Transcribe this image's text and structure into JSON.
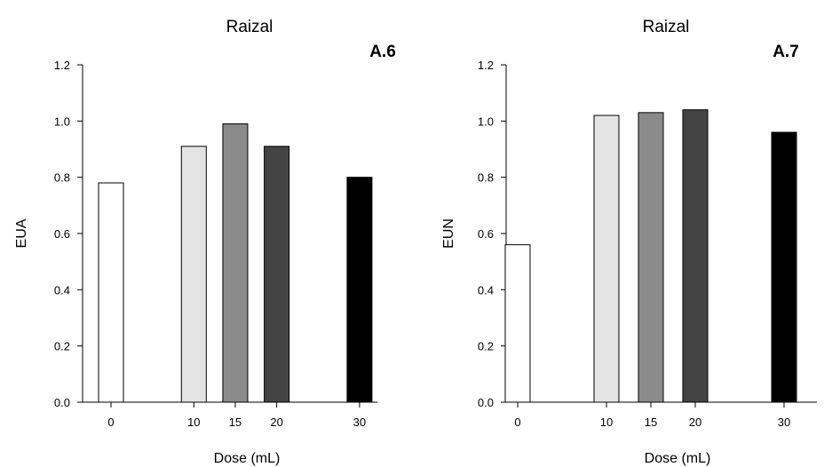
{
  "chart_data": [
    {
      "type": "bar",
      "title": "Raizal",
      "panel_label": "A.6",
      "xlabel": "Dose (mL)",
      "ylabel": "EUA",
      "categories": [
        "0",
        "10",
        "15",
        "20",
        "30"
      ],
      "x": [
        0,
        10,
        15,
        20,
        30
      ],
      "values": [
        0.78,
        0.91,
        0.99,
        0.91,
        0.8
      ],
      "bar_colors": [
        "#ffffff",
        "#e4e4e4",
        "#8a8a8a",
        "#444444",
        "#000000"
      ],
      "ylim": [
        0,
        1.2
      ],
      "yticks": [
        "0.0",
        "0.2",
        "0.4",
        "0.6",
        "0.8",
        "1.0",
        "1.2"
      ],
      "grid": false,
      "legend": "none"
    },
    {
      "type": "bar",
      "title": "Raizal",
      "panel_label": "A.7",
      "xlabel": "Dose (mL)",
      "ylabel": "EUN",
      "categories": [
        "0",
        "10",
        "15",
        "20",
        "30"
      ],
      "x": [
        0,
        10,
        15,
        20,
        30
      ],
      "values": [
        0.56,
        1.02,
        1.03,
        1.04,
        0.96
      ],
      "bar_colors": [
        "#ffffff",
        "#e4e4e4",
        "#8a8a8a",
        "#444444",
        "#000000"
      ],
      "ylim": [
        0,
        1.2
      ],
      "yticks": [
        "0.0",
        "0.2",
        "0.4",
        "0.6",
        "0.8",
        "1.0",
        "1.2"
      ],
      "grid": false,
      "legend": "none"
    }
  ]
}
